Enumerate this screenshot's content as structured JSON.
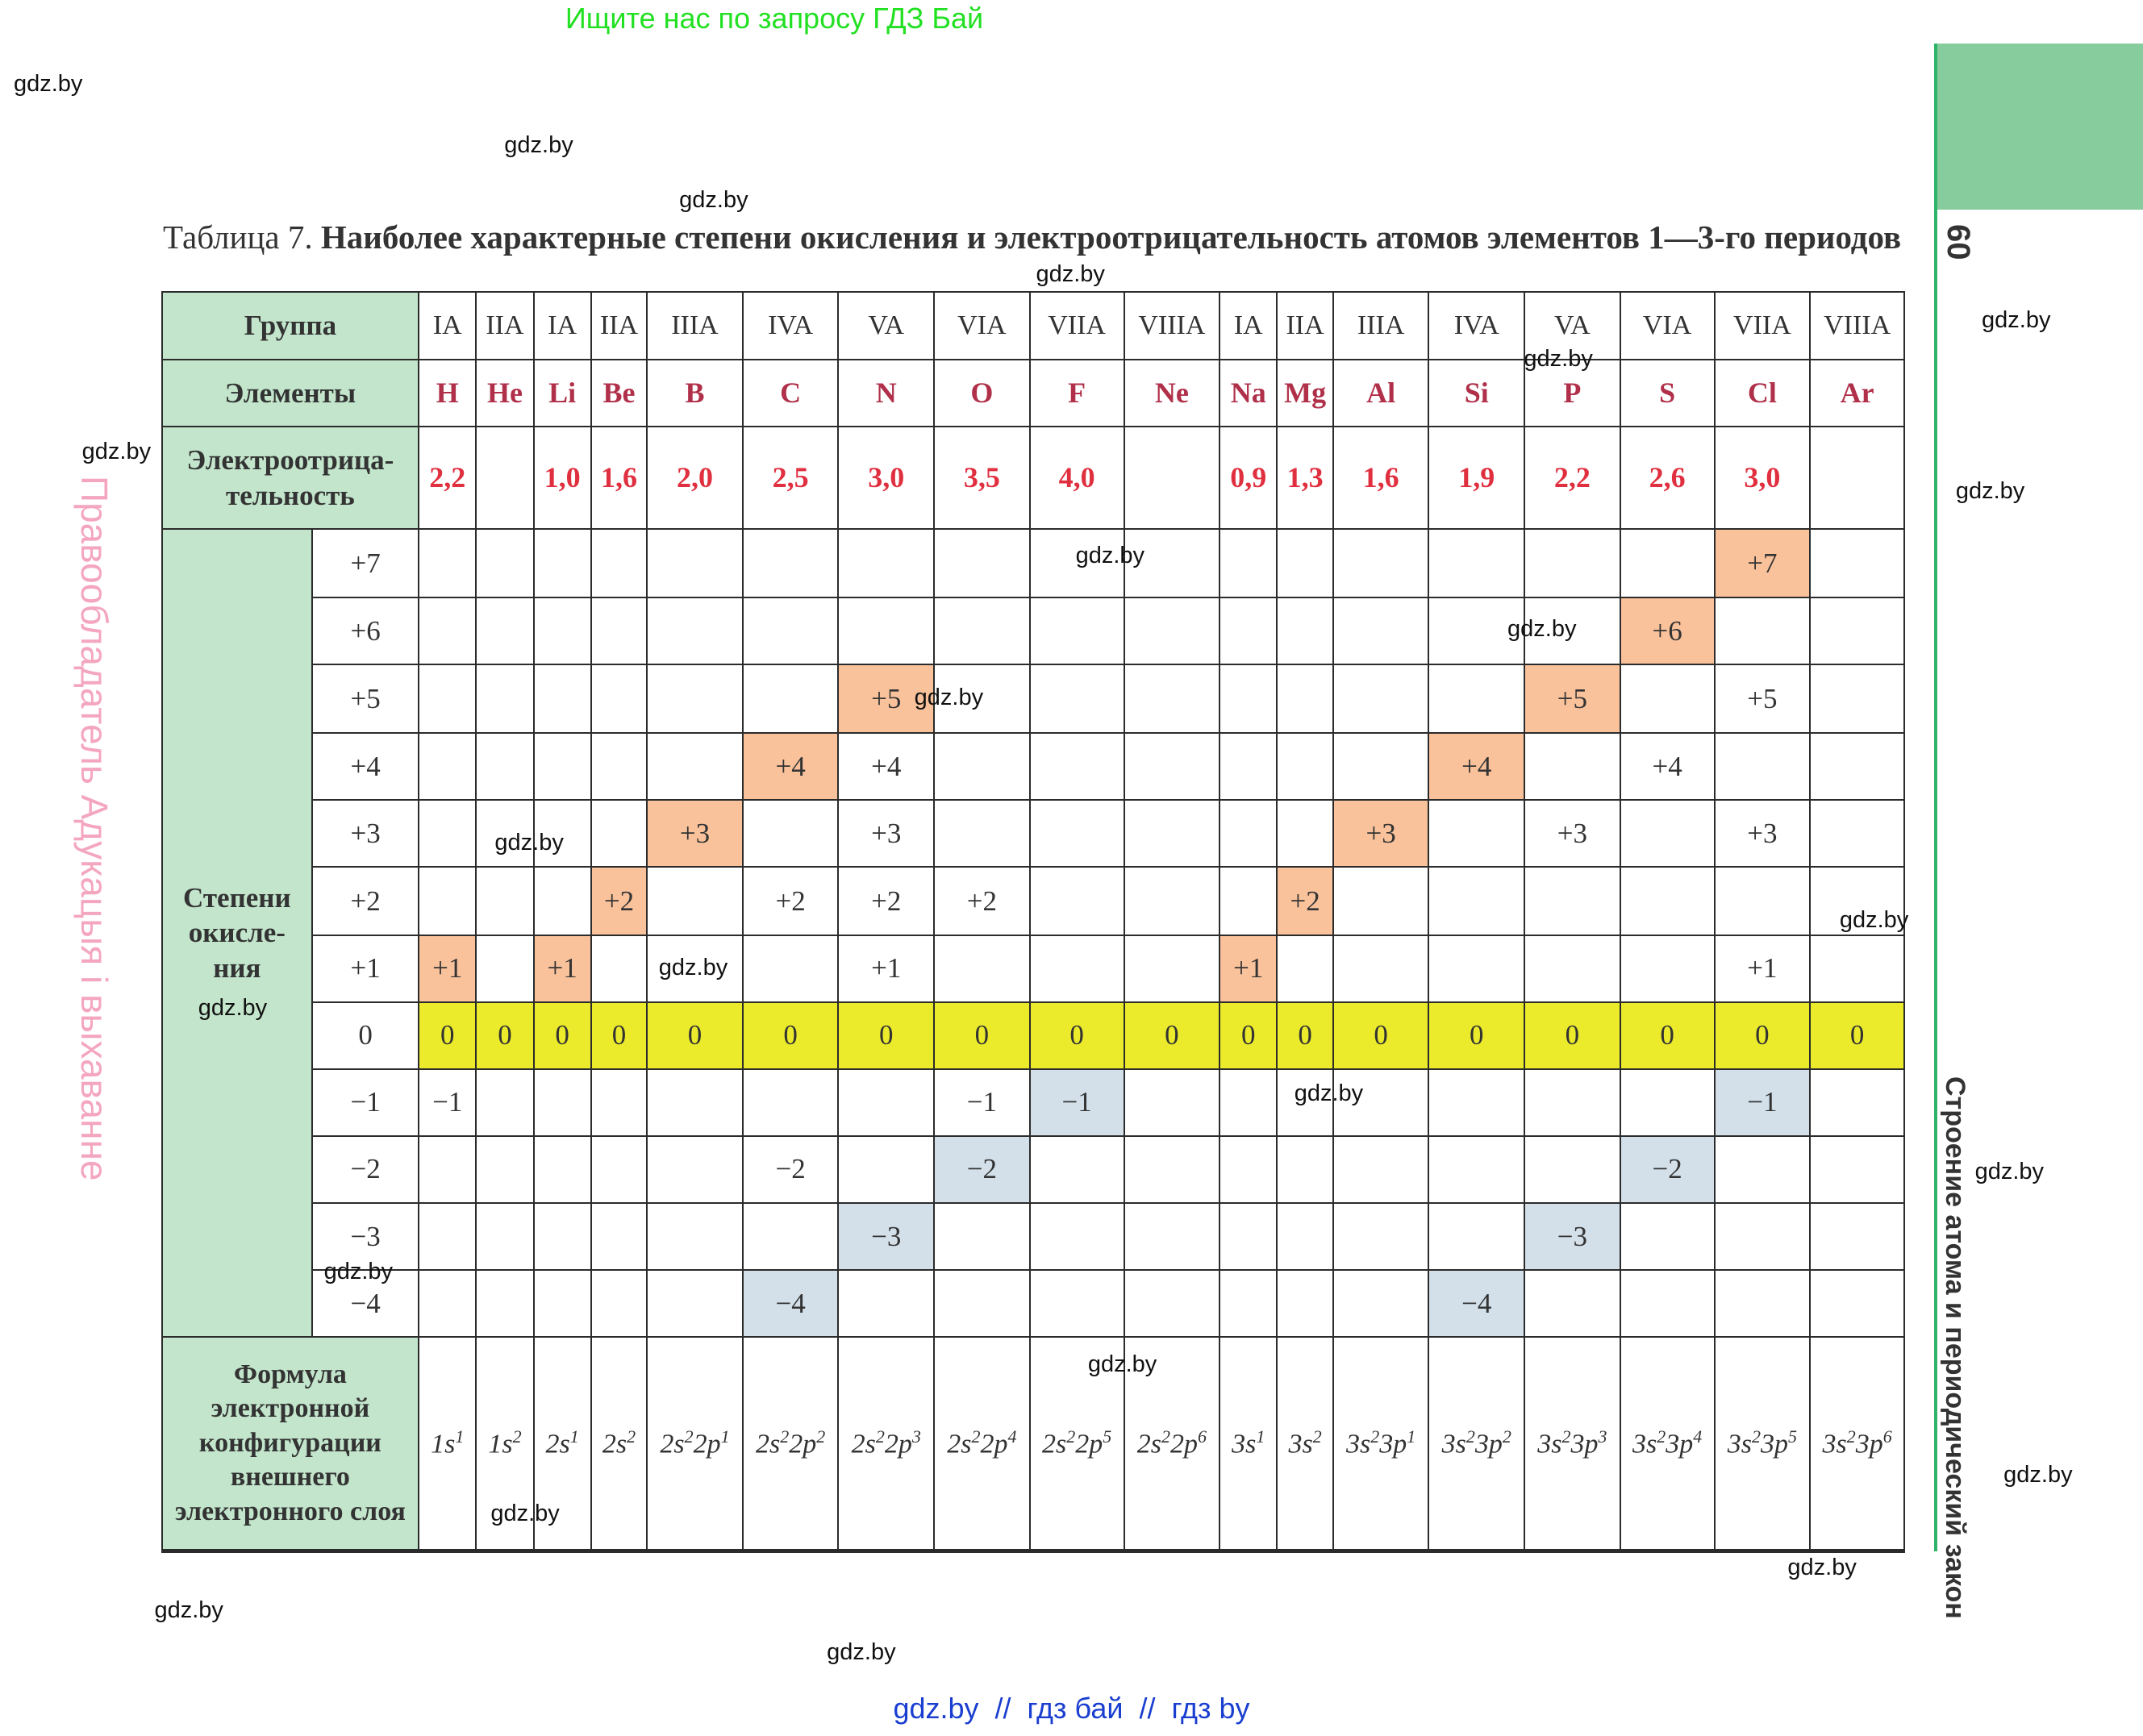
{
  "top_banner": "Ищите нас по запросу ГДЗ Бай",
  "footer": "gdz.by  //  гдз бай  //  гдз by",
  "page_number": "60",
  "side_text_right": "Строение атома и периодический закон",
  "side_text_left": "Правообладатель Адукацыя і выхаванне",
  "watermarks": [
    "gdz.by",
    "gdz.by",
    "gdz.by",
    "gdz.by",
    "gdz.by",
    "gdz.by",
    "gdz.by",
    "gdz.by",
    "gdz.by",
    "gdz.by",
    "gdz.by",
    "gdz.by",
    "gdz.by",
    "gdz.by",
    "gdz.by",
    "gdz.by",
    "gdz.by",
    "gdz.by",
    "gdz.by",
    "gdz.by",
    "gdz.by",
    "gdz.by",
    "gdz.by",
    "gdz.by"
  ],
  "caption": {
    "label": "Таблица 7.",
    "title": "Наиболее характерные степени окисления и электроотрицательность атомов элементов 1—3-го периодов"
  },
  "table": {
    "headers": {
      "group": "Группа",
      "elements": "Элементы",
      "electronegativity": "Электроотрица-\nтельность",
      "oxidation": "Степени\nокисле-\nния",
      "configuration": "Формула\nэлектронной\nконфигурации\nвнешнего\nэлектронного слоя"
    },
    "groups": [
      "IA",
      "IIA",
      "IA",
      "IIA",
      "IIIA",
      "IVA",
      "VA",
      "VIA",
      "VIIA",
      "VIIIA",
      "IA",
      "IIA",
      "IIIA",
      "IVA",
      "VA",
      "VIA",
      "VIIA",
      "VIIIA"
    ],
    "elements": [
      "H",
      "He",
      "Li",
      "Be",
      "B",
      "C",
      "N",
      "O",
      "F",
      "Ne",
      "Na",
      "Mg",
      "Al",
      "Si",
      "P",
      "S",
      "Cl",
      "Ar"
    ],
    "electronegativity": [
      "2,2",
      null,
      "1,0",
      "1,6",
      "2,0",
      "2,5",
      "3,0",
      "3,5",
      "4,0",
      null,
      "0,9",
      "1,3",
      "1,6",
      "1,9",
      "2,2",
      "2,6",
      "3,0",
      null
    ],
    "oxidation_rows": [
      {
        "label": "+7",
        "values": [
          null,
          null,
          null,
          null,
          null,
          null,
          null,
          null,
          null,
          null,
          null,
          null,
          null,
          null,
          null,
          null,
          "+7",
          null
        ],
        "highlight": [
          16
        ],
        "color": "#f9c29b"
      },
      {
        "label": "+6",
        "values": [
          null,
          null,
          null,
          null,
          null,
          null,
          null,
          null,
          null,
          null,
          null,
          null,
          null,
          null,
          null,
          "+6",
          null,
          null
        ],
        "highlight": [
          15
        ],
        "color": "#f9c29b"
      },
      {
        "label": "+5",
        "values": [
          null,
          null,
          null,
          null,
          null,
          null,
          "+5",
          null,
          null,
          null,
          null,
          null,
          null,
          null,
          "+5",
          null,
          "+5",
          null
        ],
        "highlight": [
          6,
          14
        ],
        "color": "#f9c29b"
      },
      {
        "label": "+4",
        "values": [
          null,
          null,
          null,
          null,
          null,
          "+4",
          "+4",
          null,
          null,
          null,
          null,
          null,
          null,
          "+4",
          null,
          "+4",
          null,
          null
        ],
        "highlight": [
          5,
          13
        ],
        "color": "#f9c29b"
      },
      {
        "label": "+3",
        "values": [
          null,
          null,
          null,
          null,
          "+3",
          null,
          "+3",
          null,
          null,
          null,
          null,
          null,
          "+3",
          null,
          "+3",
          null,
          "+3",
          null
        ],
        "highlight": [
          4,
          12
        ],
        "color": "#f9c29b"
      },
      {
        "label": "+2",
        "values": [
          null,
          null,
          null,
          "+2",
          null,
          "+2",
          "+2",
          "+2",
          null,
          null,
          null,
          "+2",
          null,
          null,
          null,
          null,
          null,
          null
        ],
        "highlight": [
          3,
          11
        ],
        "color": "#f9c29b"
      },
      {
        "label": "+1",
        "values": [
          "+1",
          null,
          "+1",
          null,
          null,
          null,
          "+1",
          null,
          null,
          null,
          "+1",
          null,
          null,
          null,
          null,
          null,
          "+1",
          null
        ],
        "highlight": [
          0,
          2,
          10
        ],
        "color": "#f9c29b"
      },
      {
        "label": "0",
        "values": [
          "0",
          "0",
          "0",
          "0",
          "0",
          "0",
          "0",
          "0",
          "0",
          "0",
          "0",
          "0",
          "0",
          "0",
          "0",
          "0",
          "0",
          "0"
        ],
        "highlight": [
          0,
          1,
          2,
          3,
          4,
          5,
          6,
          7,
          8,
          9,
          10,
          11,
          12,
          13,
          14,
          15,
          16,
          17
        ],
        "color": "#ebeb2c"
      },
      {
        "label": "−1",
        "values": [
          "−1",
          null,
          null,
          null,
          null,
          null,
          null,
          "−1",
          "−1",
          null,
          null,
          null,
          null,
          null,
          null,
          null,
          "−1",
          null
        ],
        "highlight": [
          8,
          16
        ],
        "color": "#d3e0ea"
      },
      {
        "label": "−2",
        "values": [
          null,
          null,
          null,
          null,
          null,
          "−2",
          null,
          "−2",
          null,
          null,
          null,
          null,
          null,
          null,
          null,
          "−2",
          null,
          null
        ],
        "highlight": [
          7,
          15
        ],
        "color": "#d3e0ea"
      },
      {
        "label": "−3",
        "values": [
          null,
          null,
          null,
          null,
          null,
          null,
          "−3",
          null,
          null,
          null,
          null,
          null,
          null,
          null,
          "−3",
          null,
          null,
          null
        ],
        "highlight": [
          6,
          14
        ],
        "color": "#d3e0ea"
      },
      {
        "label": "−4",
        "values": [
          null,
          null,
          null,
          null,
          null,
          "−4",
          null,
          null,
          null,
          null,
          null,
          null,
          null,
          "−4",
          null,
          null,
          null,
          null
        ],
        "highlight": [
          5,
          13
        ],
        "color": "#d3e0ea"
      }
    ],
    "configurations": [
      [
        {
          "n": "1s",
          "e": "1"
        }
      ],
      [
        {
          "n": "1s",
          "e": "2"
        }
      ],
      [
        {
          "n": "2s",
          "e": "1"
        }
      ],
      [
        {
          "n": "2s",
          "e": "2"
        }
      ],
      [
        {
          "n": "2s",
          "e": "2"
        },
        {
          "n": "2p",
          "e": "1"
        }
      ],
      [
        {
          "n": "2s",
          "e": "2"
        },
        {
          "n": "2p",
          "e": "2"
        }
      ],
      [
        {
          "n": "2s",
          "e": "2"
        },
        {
          "n": "2p",
          "e": "3"
        }
      ],
      [
        {
          "n": "2s",
          "e": "2"
        },
        {
          "n": "2p",
          "e": "4"
        }
      ],
      [
        {
          "n": "2s",
          "e": "2"
        },
        {
          "n": "2p",
          "e": "5"
        }
      ],
      [
        {
          "n": "2s",
          "e": "2"
        },
        {
          "n": "2p",
          "e": "6"
        }
      ],
      [
        {
          "n": "3s",
          "e": "1"
        }
      ],
      [
        {
          "n": "3s",
          "e": "2"
        }
      ],
      [
        {
          "n": "3s",
          "e": "2"
        },
        {
          "n": "3p",
          "e": "1"
        }
      ],
      [
        {
          "n": "3s",
          "e": "2"
        },
        {
          "n": "3p",
          "e": "2"
        }
      ],
      [
        {
          "n": "3s",
          "e": "2"
        },
        {
          "n": "3p",
          "e": "3"
        }
      ],
      [
        {
          "n": "3s",
          "e": "2"
        },
        {
          "n": "3p",
          "e": "4"
        }
      ],
      [
        {
          "n": "3s",
          "e": "2"
        },
        {
          "n": "3p",
          "e": "5"
        }
      ],
      [
        {
          "n": "3s",
          "e": "2"
        },
        {
          "n": "3p",
          "e": "6"
        }
      ]
    ]
  }
}
